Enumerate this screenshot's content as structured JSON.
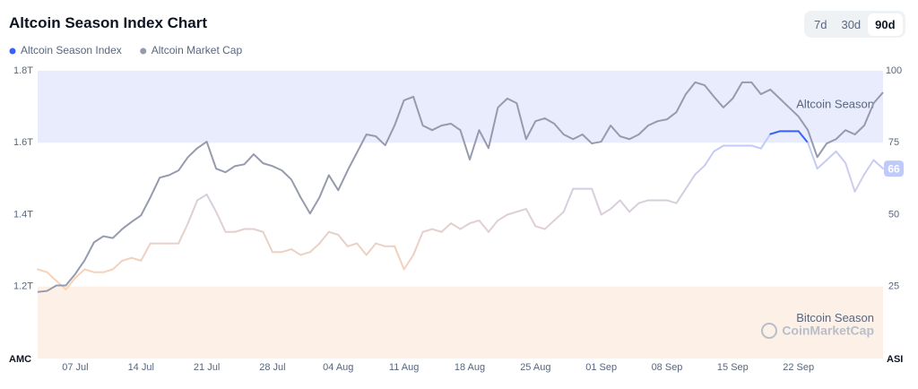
{
  "header": {
    "title": "Altcoin Season Index Chart",
    "ranges": [
      {
        "label": "7d",
        "active": false
      },
      {
        "label": "30d",
        "active": false
      },
      {
        "label": "90d",
        "active": true
      }
    ]
  },
  "chart_data": {
    "type": "line",
    "categories": [
      null,
      null,
      null,
      null,
      "07 Jul",
      null,
      null,
      null,
      null,
      null,
      null,
      "14 Jul",
      null,
      null,
      null,
      null,
      null,
      null,
      "21 Jul",
      null,
      null,
      null,
      null,
      null,
      null,
      "28 Jul",
      null,
      null,
      null,
      null,
      null,
      null,
      "04 Aug",
      null,
      null,
      null,
      null,
      null,
      null,
      "11 Aug",
      null,
      null,
      null,
      null,
      null,
      null,
      "18 Aug",
      null,
      null,
      null,
      null,
      null,
      null,
      "25 Aug",
      null,
      null,
      null,
      null,
      null,
      null,
      "01 Sep",
      null,
      null,
      null,
      null,
      null,
      null,
      "08 Sep",
      null,
      null,
      null,
      null,
      null,
      null,
      "15 Sep",
      null,
      null,
      null,
      null,
      null,
      null,
      "22 Sep",
      null,
      null,
      null,
      null,
      null,
      null,
      null,
      null,
      null
    ],
    "series": [
      {
        "name": "Altcoin Season Index",
        "color": "#3861fb",
        "axis": "y2",
        "values": [
          31,
          30,
          27,
          24,
          28,
          31,
          30,
          30,
          31,
          34,
          35,
          34,
          40,
          40,
          40,
          40,
          47,
          55,
          57,
          51,
          44,
          44,
          45,
          45,
          44,
          37,
          37,
          38,
          36,
          37,
          40,
          44,
          43,
          39,
          40,
          36,
          40,
          39,
          39,
          31,
          36,
          44,
          45,
          44,
          47,
          45,
          47,
          48,
          44,
          48,
          50,
          51,
          52,
          46,
          45,
          48,
          51,
          59,
          59,
          59,
          50,
          52,
          55,
          51,
          54,
          55,
          55,
          55,
          54,
          59,
          64,
          67,
          72,
          74,
          74,
          74,
          74,
          73,
          78,
          79,
          79,
          79,
          75,
          66,
          69,
          72,
          68,
          58,
          64,
          69,
          66
        ]
      },
      {
        "name": "Altcoin Market Cap",
        "color": "#959bad",
        "values": [
          1.185,
          1.188,
          1.203,
          1.203,
          1.235,
          1.273,
          1.323,
          1.34,
          1.335,
          1.36,
          1.38,
          1.398,
          1.448,
          1.503,
          1.51,
          1.523,
          1.56,
          1.585,
          1.603,
          1.528,
          1.518,
          1.535,
          1.54,
          1.568,
          1.543,
          1.535,
          1.523,
          1.498,
          1.448,
          1.403,
          1.448,
          1.51,
          1.468,
          1.523,
          1.573,
          1.623,
          1.618,
          1.593,
          1.648,
          1.718,
          1.728,
          1.648,
          1.635,
          1.648,
          1.653,
          1.635,
          1.553,
          1.635,
          1.585,
          1.698,
          1.723,
          1.71,
          1.61,
          1.66,
          1.668,
          1.653,
          1.623,
          1.61,
          1.623,
          1.598,
          1.603,
          1.648,
          1.618,
          1.61,
          1.623,
          1.648,
          1.66,
          1.665,
          1.685,
          1.735,
          1.768,
          1.76,
          1.728,
          1.698,
          1.723,
          1.768,
          1.768,
          1.735,
          1.748,
          1.723,
          1.698,
          1.673,
          1.635,
          1.56,
          1.598,
          1.61,
          1.635,
          1.623,
          1.648,
          1.71,
          1.74
        ]
      }
    ],
    "index_colors": {
      "low": "#fcd3b0",
      "high": "#bfcafb",
      "bitcoin": "#e9842a",
      "altcoin": "#3861fb"
    },
    "bands": [
      {
        "label": "Altcoin Season",
        "from": 75,
        "to": 100,
        "color": "#e9ecfd"
      },
      {
        "label": "Bitcoin Season",
        "from": 0,
        "to": 25,
        "color": "#fdf1e7"
      }
    ],
    "ylim": [
      1.0,
      1.8
    ],
    "yticks": [
      {
        "value": 1.2,
        "label": "1.2T"
      },
      {
        "value": 1.4,
        "label": "1.4T"
      },
      {
        "value": 1.6,
        "label": "1.6T"
      },
      {
        "value": 1.8,
        "label": "1.8T"
      }
    ],
    "y2lim": [
      0,
      100
    ],
    "y2ticks": [
      25,
      50,
      75,
      100
    ],
    "y_label": "AMC",
    "y2_label": "ASI",
    "watermark": "CoinMarketCap",
    "grid": false
  }
}
